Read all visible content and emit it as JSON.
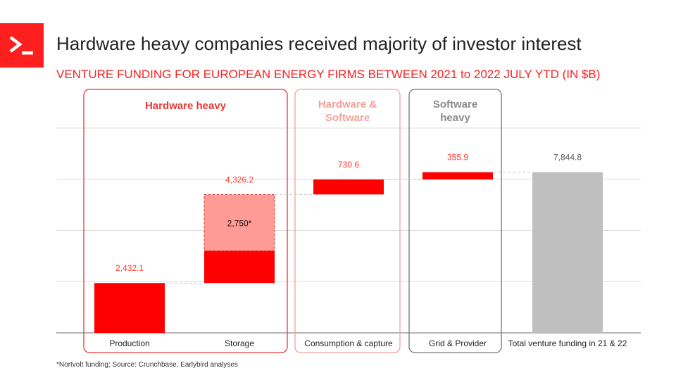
{
  "title": "Hardware heavy companies received majority of investor interest",
  "subtitle": "VENTURE FUNDING FOR EUROPEAN ENERGY FIRMS BETWEEN 2021 to 2022 JULY YTD (IN $B)",
  "footnote": "*Nortvolt funding; Source: Crunchbase, Earlybird analyses",
  "colors": {
    "brand": "#ff1f1f",
    "bar": "#ff0000",
    "bar_light": "#ff9a94",
    "total": "#bfbfbf",
    "group_hardware": "#e53935",
    "group_mixed": "#f4a09c",
    "group_software": "#777777"
  },
  "groups": [
    {
      "label": "Hardware heavy",
      "style": "hardware"
    },
    {
      "label": "Hardware & Software",
      "style": "mixed"
    },
    {
      "label": "Software heavy",
      "style": "software"
    }
  ],
  "chart_data": {
    "type": "waterfall",
    "title": "Hardware heavy companies received majority of investor interest",
    "subtitle": "VENTURE FUNDING FOR EUROPEAN ENERGY FIRMS BETWEEN 2021 to 2022 JULY YTD (IN $B)",
    "categories": [
      "Production",
      "Storage",
      "Consumption & capture",
      "Grid & Provider",
      "Total venture funding in 21 & 22"
    ],
    "values": [
      2432.1,
      4326.2,
      730.6,
      355.9,
      7844.8
    ],
    "value_labels": [
      "2,432.1",
      "4,326.2",
      "730.6",
      "355.9",
      "7,844.8"
    ],
    "bases": [
      0,
      2432.1,
      6758.3,
      7488.9,
      0
    ],
    "is_total": [
      false,
      false,
      false,
      false,
      true
    ],
    "storage_breakdown": {
      "label": "2,750*",
      "northvolt": 2750,
      "other": 1576.2
    },
    "ylim": [
      0,
      10000
    ],
    "grid": true,
    "xlabel": "",
    "ylabel": ""
  }
}
